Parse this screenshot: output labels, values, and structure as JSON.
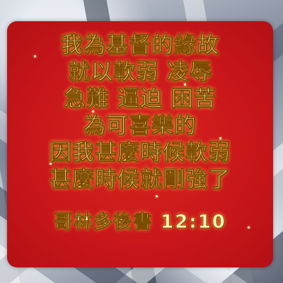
{
  "verse": {
    "lines": [
      "我為基督的緣故",
      "就以軟弱 凌辱",
      "急難 逼迫 困苦",
      "為可喜樂的",
      "因我甚麼時候軟弱",
      "甚麼時候就剛強了"
    ],
    "reference": "哥林多後書 12:10"
  }
}
